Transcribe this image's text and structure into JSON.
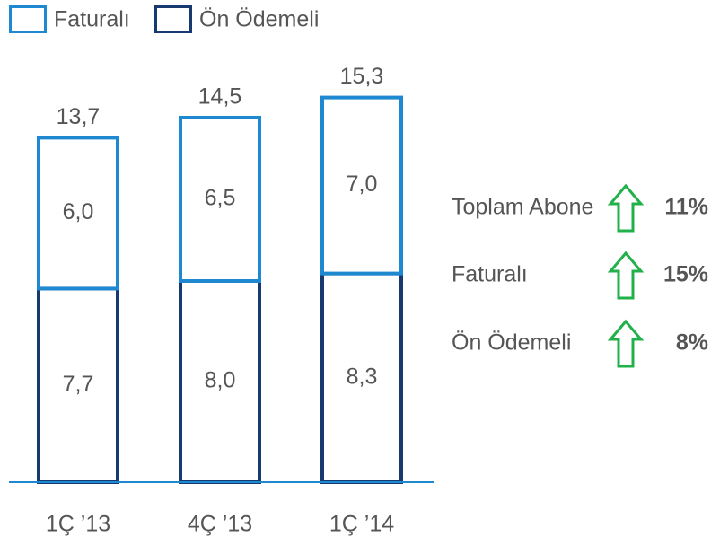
{
  "chart_data": {
    "type": "stacked_bar",
    "categories": [
      "1Ç ’13",
      "4Ç ’13",
      "1Ç ’14"
    ],
    "series": [
      {
        "name": "Faturalı",
        "color": "#1e88d0",
        "values": [
          6.0,
          6.5,
          7.0
        ],
        "value_labels": [
          "6,0",
          "6,5",
          "7,0"
        ]
      },
      {
        "name": "Ön Ödemeli",
        "color": "#163a70",
        "values": [
          7.7,
          8.0,
          8.3
        ],
        "value_labels": [
          "7,7",
          "8,0",
          "8,3"
        ]
      }
    ],
    "totals": [
      13.7,
      14.5,
      15.3
    ],
    "total_labels": [
      "13,7",
      "14,5",
      "15,3"
    ],
    "growth": [
      {
        "label": "Toplam Abone",
        "value": 11,
        "value_label": "11%"
      },
      {
        "label": "Faturalı",
        "value": 15,
        "value_label": "15%"
      },
      {
        "label": "Ön Ödemeli",
        "value": 8,
        "value_label": "8%"
      }
    ]
  }
}
